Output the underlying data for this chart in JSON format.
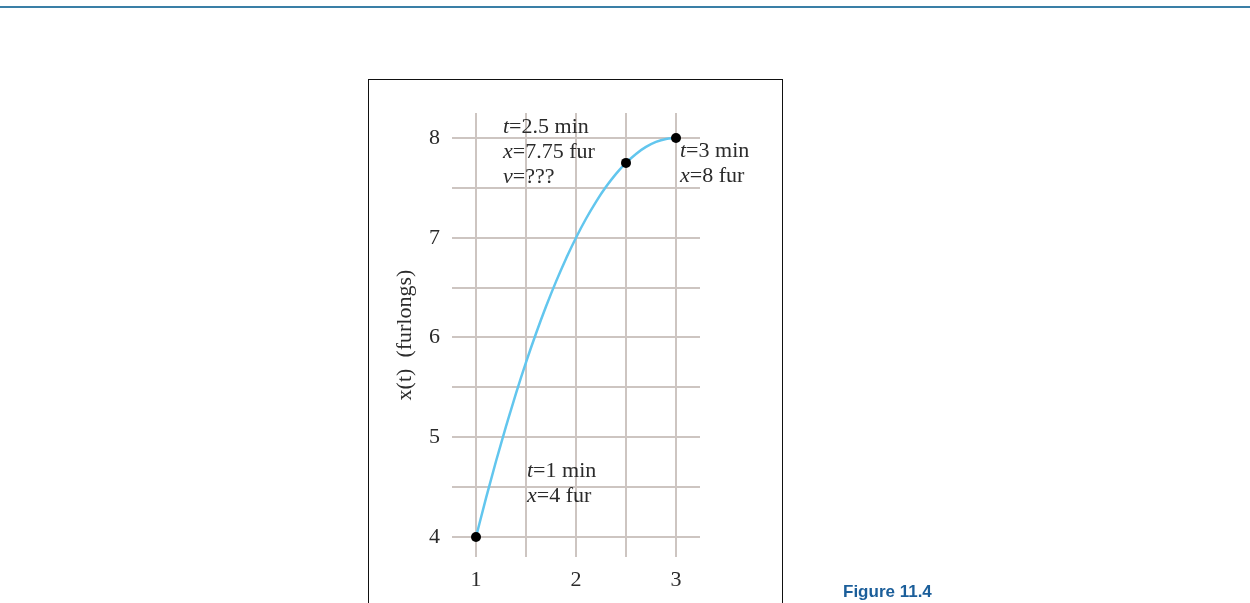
{
  "chart_data": {
    "type": "line",
    "ylabel": "x(t)  (furlongs)",
    "xlim": [
      0.76,
      3.24
    ],
    "ylim": [
      3.8,
      8.25
    ],
    "xticks": [
      1,
      {
        "value": 1.5,
        "label": null
      },
      2,
      {
        "value": 2.5,
        "label": null
      },
      3
    ],
    "yticks": [
      4,
      {
        "value": 4.5,
        "label": null
      },
      5,
      {
        "value": 5.5,
        "label": null
      },
      6,
      {
        "value": 6.5,
        "label": null
      },
      7,
      {
        "value": 7.5,
        "label": null
      },
      8
    ],
    "grid": true,
    "series": [
      {
        "color": "#62c6ee",
        "marker": "none",
        "x": [
          1,
          1.1,
          1.2,
          1.3,
          1.4,
          1.5,
          1.6,
          1.7,
          1.8,
          1.9,
          2,
          2.1,
          2.2,
          2.3,
          2.4,
          2.5,
          2.6,
          2.7,
          2.8,
          2.9,
          3
        ],
        "values": [
          4,
          4.39,
          4.76,
          5.11,
          5.44,
          5.75,
          6.04,
          6.31,
          6.56,
          6.79,
          7,
          7.19,
          7.36,
          7.51,
          7.64,
          7.75,
          7.84,
          7.91,
          7.96,
          7.99,
          8
        ]
      },
      {
        "type": "scatter",
        "color": "#000000",
        "marker": "circle",
        "x": [
          1,
          2.5,
          3
        ],
        "values": [
          4,
          7.75,
          8
        ]
      }
    ],
    "annotations": [
      {
        "text": "t=2.5 min\nx=7.75 fur\nv=???",
        "x": 2.5,
        "y": 7.75
      },
      {
        "text": "t=3 min\nx=8 fur",
        "x": 3,
        "y": 8
      },
      {
        "text": "t=1 min\nx=4 fur",
        "x": 1,
        "y": 4
      },
      "Figure 11.4"
    ]
  }
}
